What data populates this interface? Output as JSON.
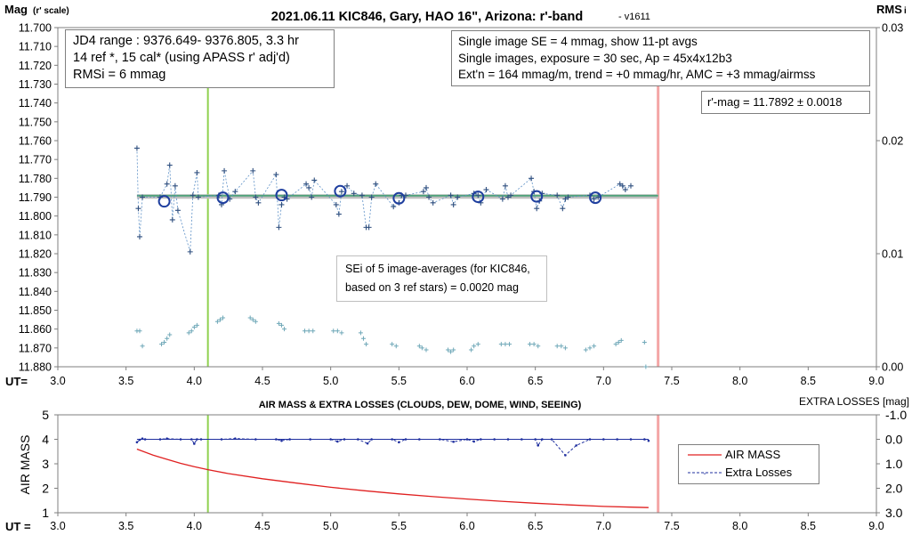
{
  "chart_data": [
    {
      "type": "scatter",
      "title": "2021.06.11 KIC846, Gary, HAO 16\", Arizona: r'-band",
      "version": "- v1611",
      "ylabel_main": "Mag",
      "ylabel_sub": "(r' scale)",
      "y2label": "RMS",
      "y2label_sub": "i",
      "xaxis_label": "UT=",
      "xlim": [
        3.0,
        9.0
      ],
      "ylim": [
        11.88,
        11.7
      ],
      "y2lim": [
        0.0,
        0.03
      ],
      "x_ticks": [
        "3.0",
        "3.5",
        "4.0",
        "4.5",
        "5.0",
        "5.5",
        "6.0",
        "6.5",
        "7.0",
        "7.5",
        "8.0",
        "8.5",
        "9.0"
      ],
      "y_ticks": [
        "11.700",
        "11.710",
        "11.720",
        "11.730",
        "11.740",
        "11.750",
        "11.760",
        "11.770",
        "11.780",
        "11.790",
        "11.800",
        "11.810",
        "11.820",
        "11.830",
        "11.840",
        "11.850",
        "11.860",
        "11.870",
        "11.880"
      ],
      "y2_ticks": [
        "0.03",
        "0.02",
        "0.01",
        "0.00"
      ],
      "vertical_lines": {
        "green_x": 4.1,
        "pink_x": 7.4
      },
      "info_left": [
        "JD4 range : 9376.649- 9376.805,  3.3  hr",
        "14 ref *, 15 cal* (using APASS r' adj'd)",
        "RMSi = 6 mmag"
      ],
      "info_right": [
        "Single image SE = 4 mmag, show  11-pt avgs",
        "Single images, exposure = 30 sec, Ap = 45x4x12b3",
        "Ext'n = 164 mmag/m, trend =  +0 mmag/hr, AMC = +3 mmag/airmss"
      ],
      "rmag_label": "r'-mag = 11.7892 ± 0.0018",
      "sei_note": [
        "SEi of 5 image-averages (for KIC846,",
        "based on 3 ref stars) = 0.0020 mag"
      ],
      "fit_level": 11.7892,
      "averages": [
        {
          "x": 3.78,
          "y": 11.7922
        },
        {
          "x": 4.21,
          "y": 11.7903
        },
        {
          "x": 4.64,
          "y": 11.7889
        },
        {
          "x": 5.07,
          "y": 11.7868
        },
        {
          "x": 5.5,
          "y": 11.7906
        },
        {
          "x": 6.08,
          "y": 11.7898
        },
        {
          "x": 6.51,
          "y": 11.7896
        },
        {
          "x": 6.94,
          "y": 11.7903
        }
      ],
      "single_images": [
        [
          3.58,
          11.764
        ],
        [
          3.59,
          11.796
        ],
        [
          3.6,
          11.811
        ],
        [
          3.62,
          11.79
        ],
        [
          3.75,
          11.79
        ],
        [
          3.8,
          11.783
        ],
        [
          3.82,
          11.773
        ],
        [
          3.84,
          11.802
        ],
        [
          3.86,
          11.784
        ],
        [
          3.88,
          11.797
        ],
        [
          3.97,
          11.819
        ],
        [
          3.99,
          11.789
        ],
        [
          4.02,
          11.777
        ],
        [
          4.03,
          11.79
        ],
        [
          4.18,
          11.789
        ],
        [
          4.2,
          11.794
        ],
        [
          4.22,
          11.776
        ],
        [
          4.26,
          11.791
        ],
        [
          4.3,
          11.787
        ],
        [
          4.43,
          11.776
        ],
        [
          4.45,
          11.79
        ],
        [
          4.47,
          11.793
        ],
        [
          4.6,
          11.778
        ],
        [
          4.62,
          11.806
        ],
        [
          4.64,
          11.794
        ],
        [
          4.66,
          11.79
        ],
        [
          4.68,
          11.791
        ],
        [
          4.82,
          11.783
        ],
        [
          4.84,
          11.785
        ],
        [
          4.86,
          11.79
        ],
        [
          4.88,
          11.781
        ],
        [
          5.04,
          11.794
        ],
        [
          5.06,
          11.799
        ],
        [
          5.08,
          11.787
        ],
        [
          5.12,
          11.784
        ],
        [
          5.17,
          11.788
        ],
        [
          5.23,
          11.789
        ],
        [
          5.26,
          11.806
        ],
        [
          5.28,
          11.806
        ],
        [
          5.3,
          11.79
        ],
        [
          5.33,
          11.783
        ],
        [
          5.46,
          11.795
        ],
        [
          5.5,
          11.793
        ],
        [
          5.52,
          11.789
        ],
        [
          5.55,
          11.789
        ],
        [
          5.68,
          11.787
        ],
        [
          5.7,
          11.785
        ],
        [
          5.72,
          11.79
        ],
        [
          5.75,
          11.793
        ],
        [
          5.88,
          11.789
        ],
        [
          5.9,
          11.794
        ],
        [
          5.93,
          11.79
        ],
        [
          6.05,
          11.788
        ],
        [
          6.08,
          11.789
        ],
        [
          6.1,
          11.793
        ],
        [
          6.14,
          11.786
        ],
        [
          6.26,
          11.791
        ],
        [
          6.28,
          11.784
        ],
        [
          6.3,
          11.79
        ],
        [
          6.32,
          11.789
        ],
        [
          6.47,
          11.78
        ],
        [
          6.49,
          11.787
        ],
        [
          6.51,
          11.796
        ],
        [
          6.53,
          11.792
        ],
        [
          6.55,
          11.788
        ],
        [
          6.66,
          11.789
        ],
        [
          6.7,
          11.796
        ],
        [
          6.72,
          11.791
        ],
        [
          6.74,
          11.79
        ],
        [
          6.9,
          11.789
        ],
        [
          6.93,
          11.791
        ],
        [
          6.96,
          11.79
        ],
        [
          7.12,
          11.783
        ],
        [
          7.14,
          11.784
        ],
        [
          7.16,
          11.786
        ],
        [
          7.2,
          11.784
        ]
      ],
      "rms_points": [
        [
          3.58,
          11.861
        ],
        [
          3.6,
          11.861
        ],
        [
          3.62,
          11.869
        ],
        [
          3.76,
          11.868
        ],
        [
          3.78,
          11.867
        ],
        [
          3.8,
          11.865
        ],
        [
          3.82,
          11.863
        ],
        [
          3.96,
          11.862
        ],
        [
          3.98,
          11.861
        ],
        [
          4.0,
          11.859
        ],
        [
          4.02,
          11.858
        ],
        [
          4.17,
          11.856
        ],
        [
          4.19,
          11.855
        ],
        [
          4.21,
          11.854
        ],
        [
          4.41,
          11.854
        ],
        [
          4.43,
          11.855
        ],
        [
          4.45,
          11.856
        ],
        [
          4.62,
          11.857
        ],
        [
          4.64,
          11.858
        ],
        [
          4.66,
          11.86
        ],
        [
          4.81,
          11.861
        ],
        [
          4.84,
          11.861
        ],
        [
          4.87,
          11.861
        ],
        [
          5.02,
          11.861
        ],
        [
          5.05,
          11.861
        ],
        [
          5.08,
          11.862
        ],
        [
          5.22,
          11.862
        ],
        [
          5.24,
          11.865
        ],
        [
          5.26,
          11.868
        ],
        [
          5.45,
          11.868
        ],
        [
          5.48,
          11.869
        ],
        [
          5.65,
          11.869
        ],
        [
          5.67,
          11.87
        ],
        [
          5.7,
          11.871
        ],
        [
          5.86,
          11.871
        ],
        [
          5.88,
          11.872
        ],
        [
          5.9,
          11.871
        ],
        [
          6.03,
          11.871
        ],
        [
          6.05,
          11.869
        ],
        [
          6.08,
          11.868
        ],
        [
          6.25,
          11.868
        ],
        [
          6.28,
          11.868
        ],
        [
          6.31,
          11.868
        ],
        [
          6.46,
          11.868
        ],
        [
          6.49,
          11.868
        ],
        [
          6.52,
          11.869
        ],
        [
          6.66,
          11.869
        ],
        [
          6.69,
          11.869
        ],
        [
          6.72,
          11.87
        ],
        [
          6.87,
          11.871
        ],
        [
          6.9,
          11.87
        ],
        [
          6.93,
          11.869
        ],
        [
          7.09,
          11.868
        ],
        [
          7.11,
          11.867
        ],
        [
          7.13,
          11.866
        ],
        [
          7.3,
          11.867
        ],
        [
          7.31,
          11.88
        ]
      ]
    },
    {
      "type": "line",
      "title": "AIR MASS & EXTRA LOSSES (CLOUDS, DEW, DOME, WIND, SEEING)",
      "ylabel": "AIR MASS",
      "y2label": "EXTRA LOSSES [mag]",
      "xaxis_label": "UT =",
      "xlim": [
        3.0,
        9.0
      ],
      "ylim": [
        1,
        5
      ],
      "y2lim": [
        3.0,
        -1.0
      ],
      "x_ticks": [
        "3.0",
        "3.5",
        "4.0",
        "4.5",
        "5.0",
        "5.5",
        "6.0",
        "6.5",
        "7.0",
        "7.5",
        "8.0",
        "8.5",
        "9.0"
      ],
      "y_ticks": [
        "5",
        "4",
        "3",
        "2",
        "1"
      ],
      "y2_ticks": [
        "-1.0",
        "0.0",
        "1.0",
        "2.0",
        "3.0"
      ],
      "vertical_lines": {
        "green_x": 4.1,
        "pink_x": 7.4
      },
      "legend": [
        "AIR MASS",
        "Extra Losses"
      ],
      "legend_position": "right",
      "series": [
        {
          "name": "AIR MASS",
          "color": "#e02020",
          "x": [
            3.58,
            3.7,
            3.8,
            3.9,
            4.0,
            4.1,
            4.25,
            4.5,
            4.75,
            5.0,
            5.25,
            5.5,
            5.75,
            6.0,
            6.25,
            6.5,
            6.75,
            7.0,
            7.2,
            7.33
          ],
          "values": [
            3.6,
            3.35,
            3.18,
            3.02,
            2.88,
            2.76,
            2.6,
            2.39,
            2.21,
            2.04,
            1.9,
            1.77,
            1.66,
            1.56,
            1.47,
            1.39,
            1.32,
            1.26,
            1.23,
            1.21
          ]
        },
        {
          "name": "Extra Losses",
          "color": "#1f2f9f",
          "x": [
            3.58,
            3.6,
            3.62,
            3.64,
            3.75,
            3.8,
            3.9,
            3.98,
            4.0,
            4.02,
            4.05,
            4.2,
            4.3,
            4.45,
            4.6,
            4.64,
            4.7,
            4.85,
            5.0,
            5.05,
            5.1,
            5.2,
            5.27,
            5.3,
            5.45,
            5.5,
            5.55,
            5.65,
            5.8,
            5.9,
            6.0,
            6.05,
            6.1,
            6.2,
            6.3,
            6.4,
            6.5,
            6.52,
            6.55,
            6.62,
            6.72,
            6.8,
            6.9,
            7.0,
            7.1,
            7.2,
            7.3,
            7.33
          ],
          "values": [
            0.12,
            0.02,
            -0.03,
            0.0,
            0.0,
            -0.03,
            0.0,
            0.0,
            0.18,
            0.0,
            0.0,
            0.0,
            -0.03,
            0.0,
            0.0,
            0.06,
            0.0,
            0.0,
            0.0,
            0.09,
            0.0,
            0.0,
            0.17,
            0.0,
            0.0,
            0.12,
            0.0,
            0.0,
            0.0,
            0.1,
            0.0,
            0.09,
            0.0,
            0.0,
            0.0,
            0.0,
            0.0,
            0.25,
            0.0,
            0.0,
            0.65,
            0.25,
            0.0,
            0.0,
            0.0,
            0.0,
            0.0,
            0.06
          ]
        }
      ]
    }
  ]
}
